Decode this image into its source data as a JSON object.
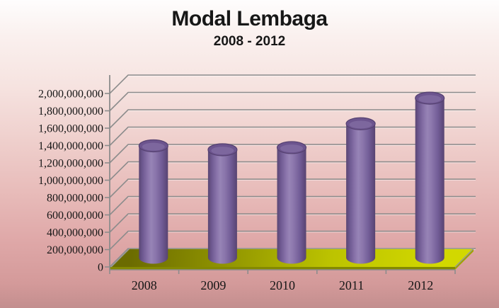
{
  "title": "Modal Lembaga",
  "subtitle": "2008 - 2012",
  "chart_data": {
    "type": "bar",
    "subtype": "3d-cylinder",
    "title": "Modal Lembaga",
    "subtitle": "2008 - 2012",
    "categories": [
      "2008",
      "2009",
      "2010",
      "2011",
      "2012"
    ],
    "values": [
      1290000000,
      1245000000,
      1270000000,
      1545000000,
      1840000000
    ],
    "xlabel": "",
    "ylabel": "",
    "ylim": [
      0,
      2000000000
    ],
    "ytick_step": 200000000,
    "ytick_labels": [
      "0",
      "200,000,000",
      "400,000,000",
      "600,000,000",
      "800,000,000",
      "1,000,000,000",
      "1,200,000,000",
      "1,400,000,000",
      "1,600,000,000",
      "1,800,000,000",
      "2,000,000,000"
    ],
    "grid": true,
    "legend": "none",
    "colors": {
      "bar_main": "#8064a2",
      "bar_edge_dark": "#5a4673",
      "bar_highlight": "#9784b6",
      "bar_top": "#6c548e",
      "bar_top_rim": "#554170",
      "floor_bright": "#d2d800",
      "floor_dark": "#6b6b00",
      "floor_front": "#848900",
      "floor_side": "#9ea300",
      "gridline": "#8c8c8c",
      "axis": "#8c8c8c",
      "text": "#171717",
      "bg_top": "#fefdfd",
      "bg_bottom": "#c38e8e"
    }
  }
}
